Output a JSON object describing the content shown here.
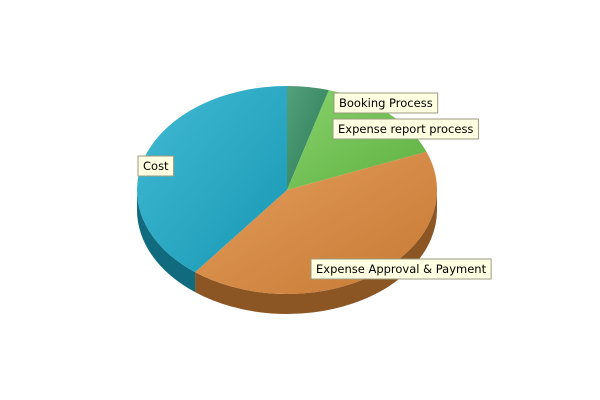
{
  "chart_data": {
    "type": "pie",
    "style": "3d",
    "title": "",
    "slices": [
      {
        "label": "Booking Process",
        "value": 4.5,
        "color": "#2e8b5f"
      },
      {
        "label": "Expense report process",
        "value": 14.5,
        "color": "#6cc84a"
      },
      {
        "label": "Expense Approval & Payment",
        "value": 41.5,
        "color": "#e0893a"
      },
      {
        "label": "Cost",
        "value": 39.5,
        "color": "#1aaccb"
      }
    ],
    "label_box_color": "#ffffe1"
  }
}
